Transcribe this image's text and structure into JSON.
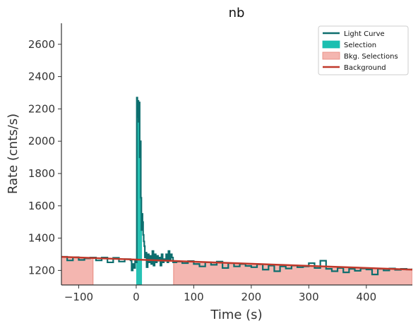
{
  "chart_data": {
    "type": "line",
    "title": "nb",
    "xlabel": "Time (s)",
    "ylabel": "Rate (cnts/s)",
    "xlim": [
      -130,
      480
    ],
    "ylim": [
      1110,
      2730
    ],
    "xticks": [
      -100,
      0,
      100,
      200,
      300,
      400
    ],
    "yticks": [
      1200,
      1400,
      1600,
      1800,
      2000,
      2200,
      2400,
      2600
    ],
    "grid": false,
    "legend_position": "top-right",
    "colors": {
      "light_curve": "#0d6e6e",
      "selection": "#1bbfb0",
      "bkg_selection_fill": "#f4b6b0",
      "bkg_selection_edge": "#e8877c",
      "background": "#c0392b",
      "axes": "#333333"
    },
    "legend": [
      {
        "label": "Light Curve",
        "kind": "line",
        "color": "#0d6e6e"
      },
      {
        "label": "Selection",
        "kind": "patch",
        "color": "#1bbfb0"
      },
      {
        "label": "Bkg. Selections",
        "kind": "patch",
        "color": "#f4b6b0"
      },
      {
        "label": "Background",
        "kind": "line",
        "color": "#c0392b"
      }
    ],
    "selection": {
      "x": [
        0,
        10
      ]
    },
    "bkg_selections": [
      [
        -130,
        -75
      ],
      [
        65,
        480
      ]
    ],
    "background_line": {
      "x": [
        -130,
        480
      ],
      "y": [
        1284,
        1205
      ]
    },
    "series": [
      {
        "name": "Light Curve",
        "step": "post",
        "x": [
          -130,
          -120,
          -110,
          -100,
          -90,
          -80,
          -70,
          -60,
          -50,
          -40,
          -30,
          -20,
          -10,
          -8,
          -6,
          -4,
          -2,
          0,
          1,
          2,
          3,
          4,
          5,
          6,
          7,
          8,
          9,
          10,
          11,
          12,
          13,
          14,
          15,
          16,
          18,
          20,
          22,
          24,
          26,
          28,
          30,
          32,
          34,
          36,
          38,
          40,
          42,
          44,
          46,
          48,
          50,
          52,
          54,
          56,
          58,
          60,
          62,
          64,
          70,
          80,
          90,
          100,
          110,
          120,
          130,
          140,
          150,
          160,
          170,
          180,
          190,
          200,
          210,
          220,
          230,
          240,
          250,
          260,
          270,
          280,
          290,
          300,
          310,
          320,
          330,
          340,
          350,
          360,
          370,
          380,
          390,
          400,
          410,
          420,
          430,
          440,
          450,
          460,
          470,
          480
        ],
        "y": [
          1285,
          1262,
          1282,
          1265,
          1275,
          1280,
          1262,
          1280,
          1250,
          1278,
          1255,
          1270,
          1262,
          1200,
          1240,
          1215,
          1260,
          1250,
          2270,
          2150,
          2250,
          2120,
          2240,
          1900,
          2000,
          1650,
          1450,
          1550,
          1500,
          1420,
          1380,
          1350,
          1280,
          1310,
          1220,
          1300,
          1250,
          1290,
          1240,
          1320,
          1230,
          1300,
          1250,
          1290,
          1260,
          1280,
          1230,
          1300,
          1250,
          1270,
          1260,
          1300,
          1250,
          1320,
          1270,
          1300,
          1280,
          1250,
          1255,
          1245,
          1258,
          1240,
          1225,
          1250,
          1235,
          1255,
          1215,
          1245,
          1225,
          1240,
          1228,
          1220,
          1238,
          1205,
          1230,
          1195,
          1225,
          1212,
          1230,
          1220,
          1225,
          1245,
          1215,
          1260,
          1210,
          1195,
          1215,
          1188,
          1210,
          1198,
          1212,
          1206,
          1175,
          1210,
          1200,
          1212,
          1204,
          1210,
          1206,
          1212
        ]
      }
    ]
  }
}
